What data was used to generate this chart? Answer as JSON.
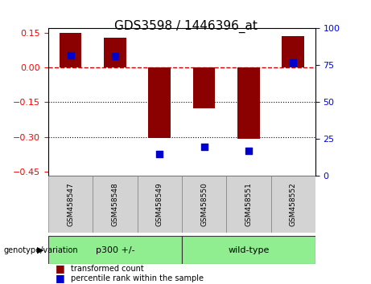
{
  "title": "GDS3598 / 1446396_at",
  "samples": [
    "GSM458547",
    "GSM458548",
    "GSM458549",
    "GSM458550",
    "GSM458551",
    "GSM458552"
  ],
  "transformed_counts": [
    0.15,
    0.13,
    -0.305,
    -0.175,
    -0.31,
    0.135
  ],
  "percentile_ranks": [
    82,
    81,
    15,
    20,
    17,
    77
  ],
  "groups": [
    {
      "name": "p300 +/-",
      "samples": [
        0,
        1,
        2
      ],
      "color": "#90EE90"
    },
    {
      "name": "wild-type",
      "samples": [
        3,
        4,
        5
      ],
      "color": "#90EE90"
    }
  ],
  "bar_color": "#8B0000",
  "dot_color": "#0000CD",
  "ylim_left": [
    -0.47,
    0.17
  ],
  "ylim_right": [
    0,
    100
  ],
  "yticks_left": [
    -0.45,
    -0.3,
    -0.15,
    0,
    0.15
  ],
  "yticks_right": [
    0,
    25,
    50,
    75,
    100
  ],
  "hline_zero_color": "#CC0000",
  "hline_style": "--",
  "dotted_lines": [
    -0.15,
    -0.3
  ],
  "background_color": "#f5f5f5",
  "legend_items": [
    "transformed count",
    "percentile rank within the sample"
  ],
  "genotype_label": "genotype/variation",
  "group_names": [
    "p300 +/-",
    "wild-type"
  ],
  "group_colors": [
    "#90EE90",
    "#90EE90"
  ]
}
